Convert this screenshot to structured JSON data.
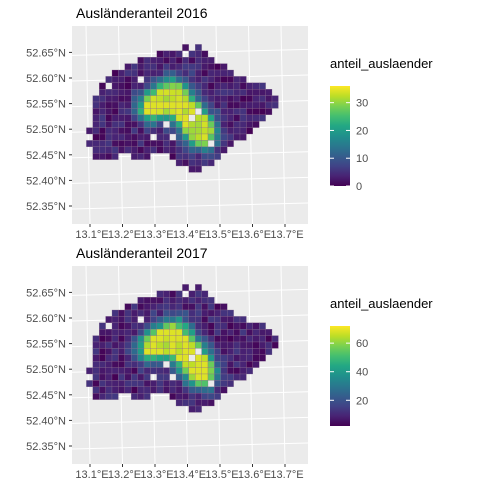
{
  "chart_data": [
    {
      "type": "heatmap",
      "title": "Ausländeranteil 2016",
      "legend": {
        "title": "anteil_auslaender",
        "ticks": [
          0,
          10,
          20,
          30
        ],
        "range": [
          0,
          36
        ],
        "placement": "right"
      },
      "xticks": [
        "13.1°E",
        "13.2°E",
        "13.3°E",
        "13.4°E",
        "13.5°E",
        "13.6°E",
        "13.7°E"
      ],
      "yticks": [
        "52.35°N",
        "52.40°N",
        "52.45°N",
        "52.50°N",
        "52.55°N",
        "52.60°N",
        "52.65°N"
      ],
      "colormap": "viridis",
      "background": "#ebebeb",
      "grid": true
    },
    {
      "type": "heatmap",
      "title": "Ausländeranteil 2017",
      "legend": {
        "title": "anteil_auslaender",
        "ticks": [
          20,
          40,
          60
        ],
        "range": [
          2,
          72
        ],
        "placement": "right"
      },
      "xticks": [
        "13.1°E",
        "13.2°E",
        "13.3°E",
        "13.4°E",
        "13.5°E",
        "13.6°E",
        "13.7°E"
      ],
      "yticks": [
        "52.35°N",
        "52.40°N",
        "52.45°N",
        "52.50°N",
        "52.55°N",
        "52.60°N",
        "52.65°N"
      ],
      "colormap": "viridis",
      "background": "#ebebeb",
      "grid": true
    }
  ]
}
